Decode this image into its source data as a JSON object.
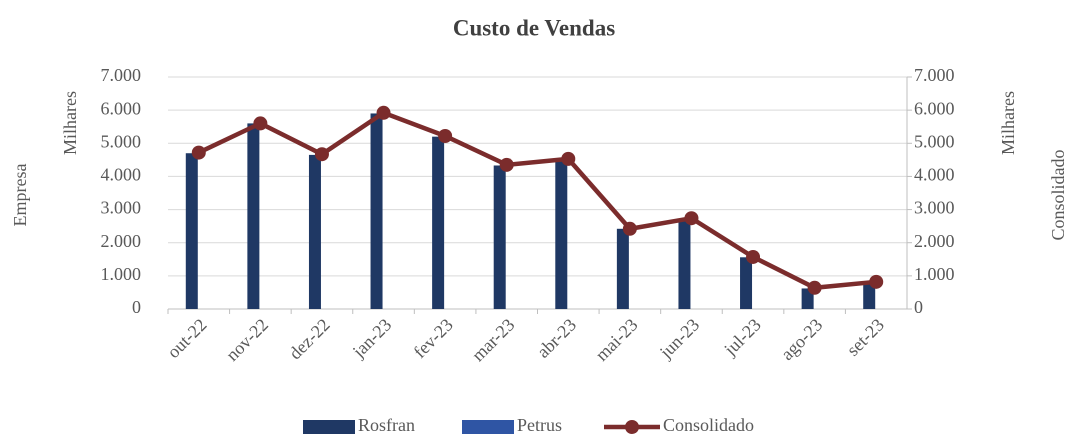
{
  "chart_data": {
    "type": "bar_line",
    "title": "Custo de Vendas",
    "ylabel": "Empresa",
    "ylabel_units": "Milhares",
    "y2label": "Consolidado",
    "y2label_units": "Milhares",
    "categories": [
      "out-22",
      "nov-22",
      "dez-22",
      "jan-23",
      "fev-23",
      "mar-23",
      "abr-23",
      "mai-23",
      "jun-23",
      "jul-23",
      "ago-23",
      "set-23"
    ],
    "series": [
      {
        "name": "Rosfran",
        "type": "bar",
        "color": "#1f3864",
        "values": [
          4700,
          5600,
          4650,
          5900,
          5200,
          4330,
          4520,
          2420,
          2720,
          1560,
          620,
          800
        ]
      },
      {
        "name": "Petrus",
        "type": "bar",
        "color": "#2f55a4",
        "values": [
          0,
          0,
          0,
          0,
          0,
          0,
          0,
          0,
          0,
          0,
          0,
          0
        ]
      },
      {
        "name": "Consolidado",
        "type": "line",
        "axis": "y2",
        "color": "#7b2c2c",
        "values": [
          4720,
          5600,
          4670,
          5920,
          5220,
          4350,
          4530,
          2420,
          2740,
          1570,
          640,
          820
        ]
      }
    ],
    "ylim": [
      0,
      7000
    ],
    "yticks": [
      0,
      {
        "value": 1000,
        "label": "1.000"
      },
      {
        "value": 2000,
        "label": "2.000"
      },
      {
        "value": 3000,
        "label": "3.000"
      },
      {
        "value": 4000,
        "label": "4.000"
      },
      {
        "value": 5000,
        "label": "5.000"
      },
      {
        "value": 6000,
        "label": "6.000"
      },
      {
        "value": 7000,
        "label": "7.000"
      }
    ],
    "y2lim": [
      0,
      7000
    ],
    "y2ticks": [
      0,
      {
        "value": 1000,
        "label": "1.000"
      },
      {
        "value": 2000,
        "label": "2.000"
      },
      {
        "value": 3000,
        "label": "3.000"
      },
      {
        "value": 4000,
        "label": "4.000"
      },
      {
        "value": 5000,
        "label": "5.000"
      },
      {
        "value": 6000,
        "label": "6.000"
      },
      {
        "value": 7000,
        "label": "7.000"
      }
    ],
    "grid": true,
    "legend": "bottom"
  }
}
